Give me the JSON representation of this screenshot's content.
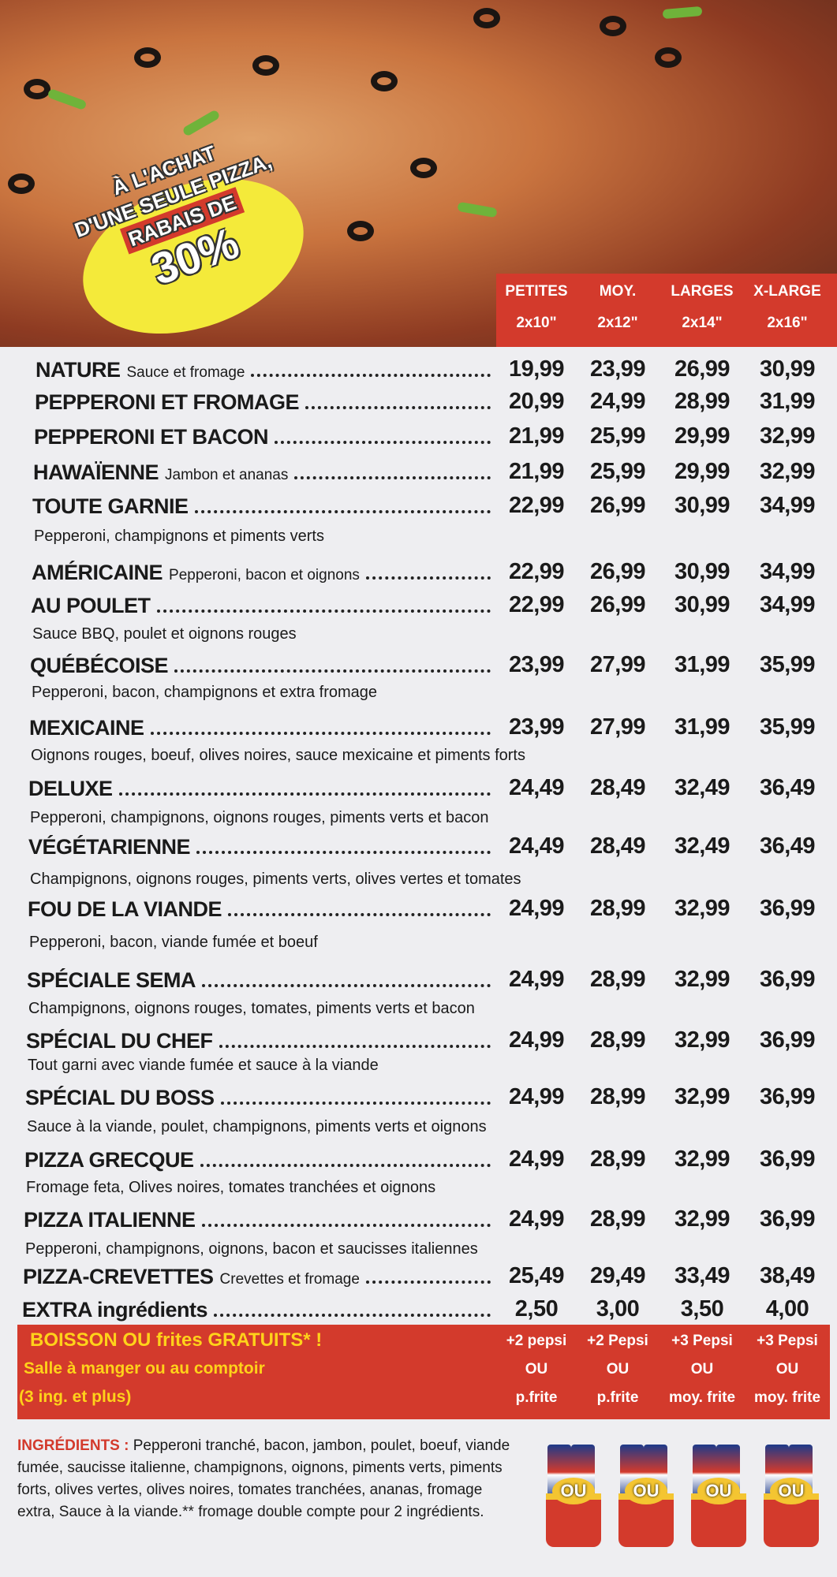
{
  "promo": {
    "lines": [
      "À L'ACHAT",
      "D'UNE SEULE PIZZA,",
      "RABAIS DE",
      "30%"
    ]
  },
  "sizes": [
    {
      "name": "PETITES",
      "dims": "2x10\""
    },
    {
      "name": "MOY.",
      "dims": "2x12\""
    },
    {
      "name": "LARGES",
      "dims": "2x14\""
    },
    {
      "name": "X-LARGE",
      "dims": "2x16\""
    }
  ],
  "items": [
    {
      "name": "NATURE",
      "description": "Sauce et fromage",
      "prices": [
        "19,99",
        "23,99",
        "26,99",
        "30,99"
      ]
    },
    {
      "name": "PEPPERONI ET FROMAGE",
      "prices": [
        "20,99",
        "24,99",
        "28,99",
        "31,99"
      ]
    },
    {
      "name": "PEPPERONI ET BACON",
      "prices": [
        "21,99",
        "25,99",
        "29,99",
        "32,99"
      ]
    },
    {
      "name": "HAWAÏENNE",
      "description": "Jambon et ananas",
      "prices": [
        "21,99",
        "25,99",
        "29,99",
        "32,99"
      ]
    },
    {
      "name": "TOUTE GARNIE",
      "description": "Pepperoni, champignons et piments verts",
      "prices": [
        "22,99",
        "26,99",
        "30,99",
        "34,99"
      ]
    },
    {
      "name": "AMÉRICAINE",
      "description": "Pepperoni, bacon et oignons",
      "prices": [
        "22,99",
        "26,99",
        "30,99",
        "34,99"
      ]
    },
    {
      "name": "AU POULET",
      "description": "Sauce BBQ, poulet et oignons rouges",
      "prices": [
        "22,99",
        "26,99",
        "30,99",
        "34,99"
      ]
    },
    {
      "name": "QUÉBÉCOISE",
      "description": "Pepperoni, bacon, champignons et extra fromage",
      "prices": [
        "23,99",
        "27,99",
        "31,99",
        "35,99"
      ]
    },
    {
      "name": "MEXICAINE",
      "description": "Oignons rouges, boeuf, olives noires, sauce mexicaine et piments forts",
      "prices": [
        "23,99",
        "27,99",
        "31,99",
        "35,99"
      ]
    },
    {
      "name": "DELUXE",
      "description": "Pepperoni, champignons, oignons rouges, piments verts et bacon",
      "prices": [
        "24,49",
        "28,49",
        "32,49",
        "36,49"
      ]
    },
    {
      "name": "VÉGÉTARIENNE",
      "description": "Champignons, oignons rouges, piments verts, olives vertes et tomates",
      "prices": [
        "24,49",
        "28,49",
        "32,49",
        "36,49"
      ]
    },
    {
      "name": "FOU DE LA VIANDE",
      "description": "Pepperoni, bacon, viande fumée et boeuf",
      "prices": [
        "24,99",
        "28,99",
        "32,99",
        "36,99"
      ]
    },
    {
      "name": "SPÉCIALE SEMA",
      "description": "Champignons, oignons rouges, tomates, piments verts et bacon",
      "prices": [
        "24,99",
        "28,99",
        "32,99",
        "36,99"
      ]
    },
    {
      "name": "SPÉCIAL DU CHEF",
      "description": "Tout garni avec viande fumée et sauce à la viande",
      "prices": [
        "24,99",
        "28,99",
        "32,99",
        "36,99"
      ]
    },
    {
      "name": "SPÉCIAL DU BOSS",
      "description": "Sauce à la viande, poulet, champignons, piments verts et oignons",
      "prices": [
        "24,99",
        "28,99",
        "32,99",
        "36,99"
      ]
    },
    {
      "name": "PIZZA GRECQUE",
      "description": "Fromage feta, Olives noires, tomates tranchées et oignons",
      "prices": [
        "24,99",
        "28,99",
        "32,99",
        "36,99"
      ]
    },
    {
      "name": "PIZZA ITALIENNE",
      "description": "Pepperoni, champignons, oignons, bacon et saucisses italiennes",
      "prices": [
        "24,99",
        "28,99",
        "32,99",
        "36,99"
      ]
    },
    {
      "name": "PIZZA-CREVETTES",
      "description": "Crevettes et fromage",
      "prices": [
        "25,49",
        "29,49",
        "33,49",
        "38,49"
      ]
    }
  ],
  "extra": {
    "name": "EXTRA ingrédients",
    "prices": [
      "2,50",
      "3,00",
      "3,50",
      "4,00"
    ]
  },
  "drinks": {
    "title": "BOISSON OU frites GRATUITS* !",
    "subtitle": "Salle à manger ou au comptoir",
    "note": "(3 ing. et plus)",
    "offers": [
      [
        "+2 pepsi",
        "OU",
        "p.frite"
      ],
      [
        "+2 Pepsi",
        "OU",
        "p.frite"
      ],
      [
        "+3 Pepsi",
        "OU",
        "moy. frite"
      ],
      [
        "+3 Pepsi",
        "OU",
        "moy. frite"
      ]
    ]
  },
  "ingredients": {
    "label": "INGRÉDIENTS :",
    "text": "Pepperoni tranché, bacon, jambon, poulet, boeuf, viande fumée, saucisse italienne, champignons, oignons, piments verts, piments forts, olives vertes, olives noires, tomates tranchées, ananas, fromage extra, Sauce à la viande.** fromage double compte pour 2 ingrédients."
  },
  "icons": [
    "OU",
    "OU",
    "OU",
    "OU"
  ]
}
